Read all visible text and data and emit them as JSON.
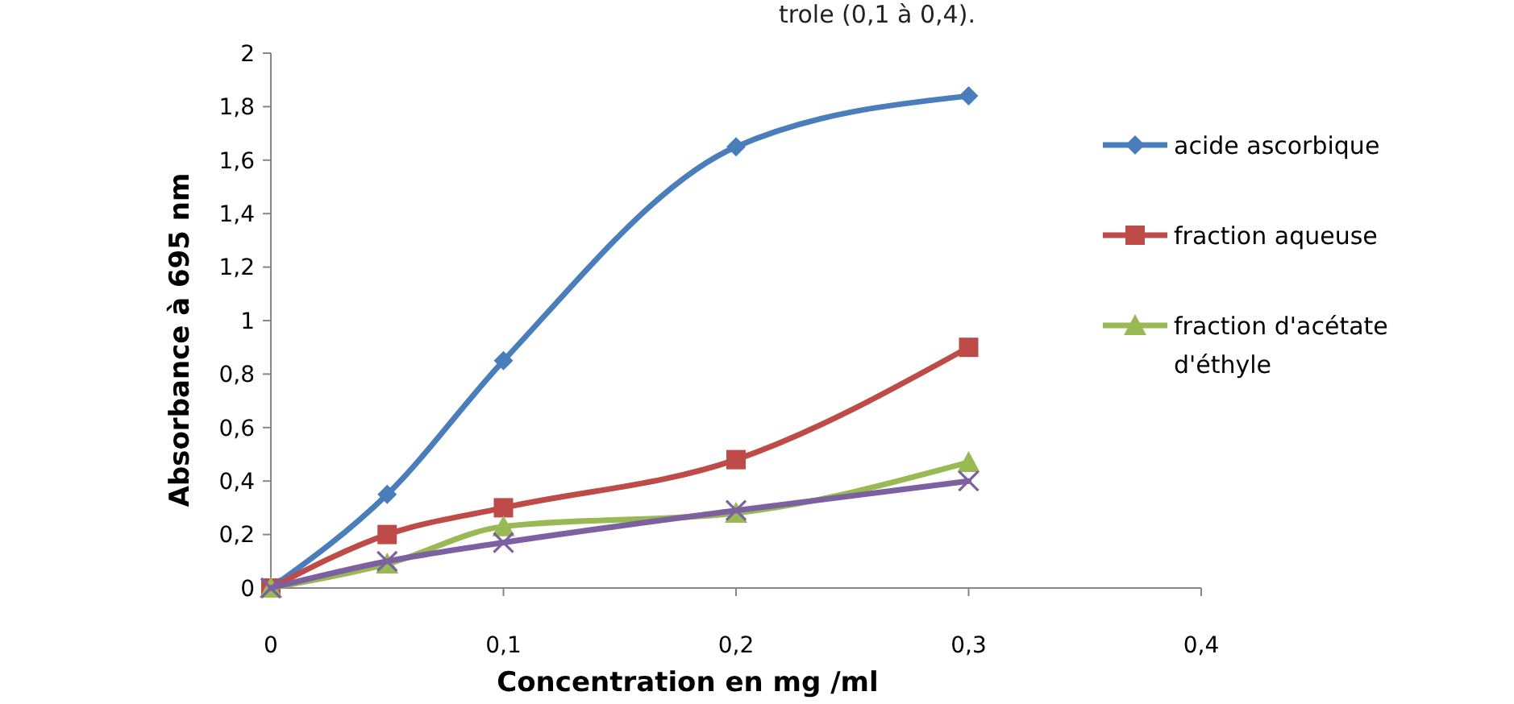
{
  "chart_data": {
    "type": "line",
    "xlabel": "Concentration en mg /ml",
    "ylabel": "Absorbance à 695 nm",
    "annotations": [
      "trole (0,1 à 0,4)."
    ],
    "x": [
      0,
      0.05,
      0.1,
      0.2,
      0.3
    ],
    "series": [
      {
        "name": "acide ascorbique",
        "color": "#4a7ebb",
        "marker": "diamond",
        "values": [
          0,
          0.35,
          0.85,
          1.65,
          1.84
        ]
      },
      {
        "name": "fraction aqueuse",
        "color": "#be4b48",
        "marker": "square",
        "values": [
          0,
          0.2,
          0.3,
          0.48,
          0.9
        ]
      },
      {
        "name": "fraction d'acétate d'éthyle",
        "color": "#98b954",
        "marker": "triangle",
        "values": [
          0,
          0.09,
          0.23,
          0.28,
          0.47
        ]
      },
      {
        "color": "#7d60a0",
        "marker": "cross",
        "values": [
          0,
          0.1,
          0.17,
          0.29,
          0.4
        ]
      }
    ],
    "xlim": [
      0,
      0.4
    ],
    "xticks": [
      0,
      {
        "value": 0.1,
        "label": "0,1"
      },
      {
        "value": 0.2,
        "label": "0,2"
      },
      {
        "value": 0.3,
        "label": "0,3"
      },
      {
        "value": 0.4,
        "label": "0,4"
      }
    ],
    "ylim": [
      0,
      2
    ],
    "yticks": [
      0,
      {
        "value": 0.2,
        "label": "0,2"
      },
      {
        "value": 0.4,
        "label": "0,4"
      },
      {
        "value": 0.6,
        "label": "0,6"
      },
      {
        "value": 0.8,
        "label": "0,8"
      },
      1,
      {
        "value": 1.2,
        "label": "1,2"
      },
      {
        "value": 1.4,
        "label": "1,4"
      },
      {
        "value": 1.6,
        "label": "1,6"
      },
      {
        "value": 1.8,
        "label": "1,8"
      },
      2
    ],
    "grid": false,
    "legend": "right",
    "line_style": "solid"
  }
}
